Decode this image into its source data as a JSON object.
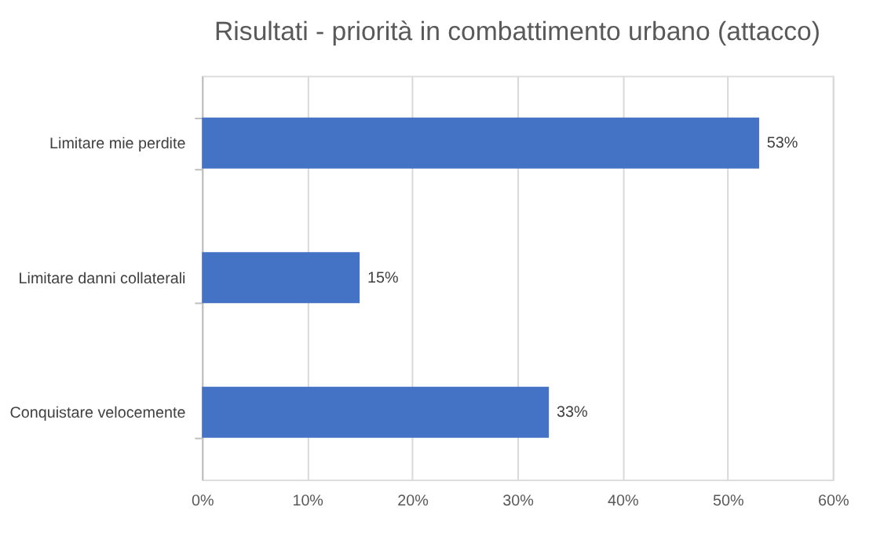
{
  "chart_data": {
    "type": "bar",
    "orientation": "horizontal",
    "title": "Risultati - priorità in combattimento urbano (attacco)",
    "categories": [
      "Limitare mie perdite",
      "Limitare danni collaterali",
      "Conquistare velocemente"
    ],
    "values": [
      53,
      15,
      33
    ],
    "value_labels": [
      "53%",
      "15%",
      "33%"
    ],
    "color": "#4472c4",
    "xlim": [
      0,
      60
    ],
    "xticks": [
      {
        "value": 0,
        "label": "0%"
      },
      {
        "value": 10,
        "label": "10%"
      },
      {
        "value": 20,
        "label": "20%"
      },
      {
        "value": 30,
        "label": "30%"
      },
      {
        "value": 40,
        "label": "40%"
      },
      {
        "value": 50,
        "label": "50%"
      },
      {
        "value": 60,
        "label": "60%"
      }
    ],
    "grid": "x"
  }
}
